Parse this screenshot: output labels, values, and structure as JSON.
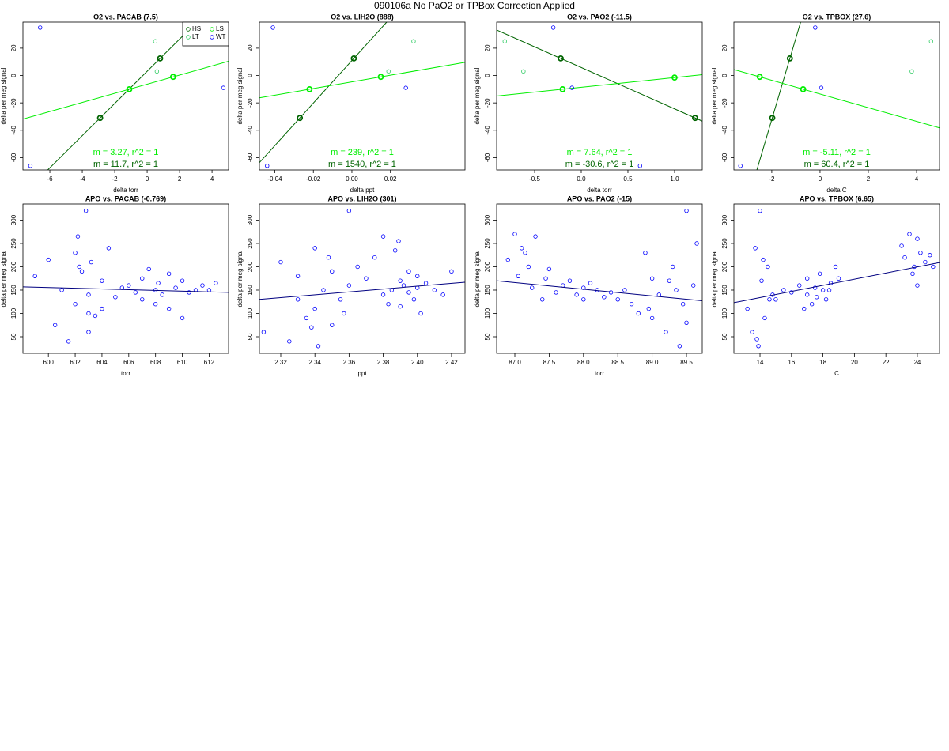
{
  "title": "090106a   No PaO2 or TPBox Correction Applied",
  "chart_data": [
    {
      "type": "scatter",
      "title": "O2 vs. PACAB (7.5)",
      "xlabel": "delta torr",
      "ylabel": "delta per meg signal",
      "xlim": [
        -7.66,
        5.02
      ],
      "ylim": [
        -69,
        39
      ],
      "xticks": [
        -6,
        -4,
        -2,
        0,
        2,
        4
      ],
      "yticks": [
        -60,
        -40,
        -20,
        0,
        20
      ],
      "legend": "topright",
      "series": [
        {
          "name": "HS",
          "color": "#006400",
          "x": [
            -2.9,
            0.8
          ],
          "values": [
            -31,
            12.5
          ],
          "fit_label": "m = 11.7, r^2 = 1"
        },
        {
          "name": "LS",
          "color": "#00ee00",
          "x": [
            -1.1,
            1.6
          ],
          "values": [
            -10,
            -1
          ],
          "fit_label": "m = 3.27, r^2 = 1"
        },
        {
          "name": "LT",
          "color": "#33cc66",
          "x": [
            0.5,
            0.6
          ],
          "values": [
            25,
            3
          ]
        },
        {
          "name": "WT",
          "color": "#0000ff",
          "x": [
            -6.6,
            -7.2,
            4.7
          ],
          "values": [
            35,
            -66,
            -9
          ]
        }
      ]
    },
    {
      "type": "scatter",
      "title": "O2 vs. LIH2O (888)",
      "xlabel": "delta ppt",
      "ylabel": "delta per meg signal",
      "xlim": [
        -0.048,
        0.0587
      ],
      "ylim": [
        -69,
        39
      ],
      "xticks": [
        -0.04,
        -0.02,
        {
          "value": 0,
          "label": "0.00"
        },
        0.02
      ],
      "yticks": [
        -60,
        -40,
        -20,
        0,
        20
      ],
      "series": [
        {
          "name": "HS",
          "color": "#006400",
          "x": [
            -0.027,
            0.001
          ],
          "values": [
            -31,
            12.5
          ],
          "fit_label": "m = 1540, r^2 = 1"
        },
        {
          "name": "LS",
          "color": "#00ee00",
          "x": [
            -0.022,
            0.015
          ],
          "values": [
            -10,
            -1
          ],
          "fit_label": "m = 239, r^2 = 1"
        },
        {
          "name": "LT",
          "color": "#33cc66",
          "x": [
            0.019,
            0.032
          ],
          "values": [
            3,
            25
          ]
        },
        {
          "name": "WT",
          "color": "#0000ff",
          "x": [
            -0.041,
            -0.044,
            0.028
          ],
          "values": [
            35,
            -66,
            -9
          ]
        }
      ]
    },
    {
      "type": "scatter",
      "title": "O2 vs. PAO2 (-11.5)",
      "xlabel": "delta torr",
      "ylabel": "delta per meg signal",
      "xlim": [
        -0.907,
        1.297
      ],
      "ylim": [
        -69,
        39
      ],
      "xticks": [
        -0.5,
        {
          "value": 0,
          "label": "0.0"
        },
        0.5,
        {
          "value": 1,
          "label": "1.0"
        }
      ],
      "yticks": [
        -60,
        -40,
        -20,
        0,
        20
      ],
      "series": [
        {
          "name": "HS",
          "color": "#006400",
          "x": [
            -0.22,
            1.22
          ],
          "values": [
            12.5,
            -31
          ],
          "fit_label": "m = -30.6, r^2 = 1"
        },
        {
          "name": "LS",
          "color": "#00ee00",
          "x": [
            -0.2,
            1.0
          ],
          "values": [
            -10,
            -1.5
          ],
          "fit_label": "m = 7.64, r^2 = 1"
        },
        {
          "name": "LT",
          "color": "#33cc66",
          "x": [
            -0.82,
            -0.62
          ],
          "values": [
            25,
            3
          ]
        },
        {
          "name": "WT",
          "color": "#0000ff",
          "x": [
            -0.3,
            -0.1,
            0.63
          ],
          "values": [
            35,
            -9,
            -66
          ]
        }
      ]
    },
    {
      "type": "scatter",
      "title": "O2 vs. TPBOX (27.6)",
      "xlabel": "delta C",
      "ylabel": "delta per meg signal",
      "xlim": [
        -3.57,
        4.95
      ],
      "ylim": [
        -69,
        39
      ],
      "xticks": [
        -2,
        0,
        2,
        4
      ],
      "yticks": [
        -60,
        -40,
        -20,
        0,
        20
      ],
      "series": [
        {
          "name": "HS",
          "color": "#006400",
          "x": [
            -1.98,
            -1.25
          ],
          "values": [
            -31,
            12.5
          ],
          "fit_label": "m = 60.4, r^2 = 1"
        },
        {
          "name": "LS",
          "color": "#00ee00",
          "x": [
            -2.5,
            -0.7
          ],
          "values": [
            -1,
            -10
          ],
          "fit_label": "m = -5.11, r^2 = 1"
        },
        {
          "name": "LT",
          "color": "#33cc66",
          "x": [
            3.8,
            4.6
          ],
          "values": [
            3,
            25
          ]
        },
        {
          "name": "WT",
          "color": "#0000ff",
          "x": [
            -3.3,
            -0.2,
            0.05
          ],
          "values": [
            -66,
            35,
            -9
          ]
        }
      ]
    },
    {
      "type": "scatter",
      "title": "APO vs. PACAB (-0.769)",
      "xlabel": "torr",
      "ylabel": "delta per meg signal",
      "xlim": [
        598.1,
        613.45
      ],
      "ylim": [
        14.4,
        334.7
      ],
      "xticks": [
        600,
        602,
        604,
        606,
        608,
        610,
        612
      ],
      "yticks": [
        50,
        100,
        150,
        200,
        250,
        300
      ],
      "series": [
        {
          "color": "#0000ff",
          "x": [
            599,
            600,
            600.5,
            601,
            601.5,
            602,
            602,
            602.2,
            602.5,
            602.8,
            603,
            603,
            603.2,
            603.5,
            604,
            604,
            604.5,
            605,
            605.5,
            606,
            606.5,
            607,
            607,
            607.5,
            608,
            608,
            608.2,
            608.5,
            609,
            609,
            609.5,
            610,
            610,
            610.5,
            611,
            611.5,
            612,
            612.5,
            603,
            602.3
          ],
          "values": [
            180,
            215,
            75,
            150,
            40,
            230,
            120,
            265,
            190,
            320,
            60,
            140,
            210,
            95,
            170,
            110,
            240,
            135,
            155,
            160,
            145,
            175,
            130,
            195,
            150,
            120,
            165,
            140,
            185,
            110,
            155,
            170,
            90,
            145,
            150,
            160,
            150,
            165,
            100,
            200
          ]
        }
      ],
      "fit": {
        "color": "#000080",
        "x": [
          598.1,
          613.45
        ],
        "values": [
          157,
          145
        ]
      }
    },
    {
      "type": "scatter",
      "title": "APO vs. LIH2O (301)",
      "xlabel": "ppt",
      "ylabel": "delta per meg signal",
      "xlim": [
        2.3075,
        2.4279
      ],
      "ylim": [
        14.4,
        334.7
      ],
      "xticks": [
        2.32,
        2.34,
        2.36,
        2.38,
        {
          "value": 2.4,
          "label": "2.40"
        },
        2.42
      ],
      "yticks": [
        50,
        100,
        150,
        200,
        250,
        300
      ],
      "series": [
        {
          "color": "#0000ff",
          "x": [
            2.31,
            2.32,
            2.325,
            2.33,
            2.33,
            2.335,
            2.34,
            2.34,
            2.342,
            2.345,
            2.35,
            2.35,
            2.355,
            2.36,
            2.36,
            2.365,
            2.37,
            2.375,
            2.38,
            2.38,
            2.383,
            2.385,
            2.387,
            2.39,
            2.39,
            2.392,
            2.395,
            2.395,
            2.398,
            2.4,
            2.4,
            2.402,
            2.405,
            2.41,
            2.415,
            2.42,
            2.357,
            2.348,
            2.338,
            2.389
          ],
          "values": [
            60,
            210,
            40,
            130,
            180,
            90,
            240,
            110,
            30,
            150,
            190,
            75,
            130,
            320,
            160,
            200,
            175,
            220,
            265,
            140,
            120,
            150,
            235,
            170,
            115,
            160,
            145,
            190,
            130,
            155,
            180,
            100,
            165,
            150,
            140,
            190,
            100,
            220,
            70,
            255
          ]
        }
      ],
      "fit": {
        "color": "#000080",
        "x": [
          2.3075,
          2.4279
        ],
        "values": [
          130,
          167
        ]
      }
    },
    {
      "type": "scatter",
      "title": "APO vs. PAO2 (-15)",
      "xlabel": "torr",
      "ylabel": "delta per meg signal",
      "xlim": [
        86.735,
        89.73
      ],
      "ylim": [
        14.4,
        334.7
      ],
      "xticks": [
        {
          "value": 87,
          "label": "87.0"
        },
        87.5,
        {
          "value": 88,
          "label": "88.0"
        },
        88.5,
        {
          "value": 89,
          "label": "89.0"
        },
        89.5
      ],
      "yticks": [
        50,
        100,
        150,
        200,
        250,
        300
      ],
      "series": [
        {
          "color": "#0000ff",
          "x": [
            86.9,
            87.0,
            87.05,
            87.1,
            87.2,
            87.25,
            87.3,
            87.4,
            87.45,
            87.5,
            87.6,
            87.7,
            87.8,
            87.9,
            88.0,
            88.0,
            88.1,
            88.2,
            88.3,
            88.4,
            88.5,
            88.6,
            88.7,
            88.8,
            88.9,
            89.0,
            89.0,
            89.1,
            89.2,
            89.3,
            89.35,
            89.4,
            89.45,
            89.5,
            89.5,
            89.6,
            89.65,
            87.15,
            88.95,
            89.25
          ],
          "values": [
            215,
            270,
            180,
            240,
            200,
            155,
            265,
            130,
            175,
            195,
            145,
            160,
            170,
            140,
            155,
            130,
            165,
            150,
            135,
            145,
            130,
            150,
            120,
            100,
            230,
            90,
            175,
            140,
            60,
            200,
            150,
            30,
            120,
            320,
            80,
            160,
            250,
            230,
            110,
            170
          ]
        }
      ],
      "fit": {
        "color": "#000080",
        "x": [
          86.735,
          89.73
        ],
        "values": [
          170,
          127
        ]
      }
    },
    {
      "type": "scatter",
      "title": "APO vs. TPBOX (6.65)",
      "xlabel": "C",
      "ylabel": "delta per meg signal",
      "xlim": [
        12.34,
        25.41
      ],
      "ylim": [
        14.4,
        334.7
      ],
      "xticks": [
        14,
        16,
        18,
        20,
        22,
        24
      ],
      "yticks": [
        50,
        100,
        150,
        200,
        250,
        300
      ],
      "series": [
        {
          "color": "#0000ff",
          "x": [
            13.2,
            13.5,
            13.7,
            13.9,
            14,
            14.1,
            14.3,
            14.5,
            14.8,
            15,
            15.5,
            16,
            16.5,
            17,
            17,
            17.3,
            17.5,
            17.8,
            18,
            18.2,
            18.5,
            18.8,
            19,
            13.8,
            14.2,
            23,
            23.2,
            23.5,
            23.8,
            24,
            24,
            24.2,
            24.5,
            24.8,
            25,
            23.7,
            16.8,
            17.6,
            14.6,
            18.4
          ],
          "values": [
            110,
            60,
            240,
            30,
            320,
            170,
            90,
            200,
            140,
            130,
            150,
            145,
            160,
            140,
            175,
            120,
            155,
            185,
            150,
            130,
            165,
            200,
            175,
            45,
            215,
            245,
            220,
            270,
            200,
            160,
            260,
            230,
            210,
            225,
            200,
            185,
            110,
            135,
            130,
            150
          ]
        }
      ],
      "fit": {
        "color": "#000080",
        "x": [
          12.34,
          25.41
        ],
        "values": [
          123,
          209
        ]
      }
    }
  ]
}
